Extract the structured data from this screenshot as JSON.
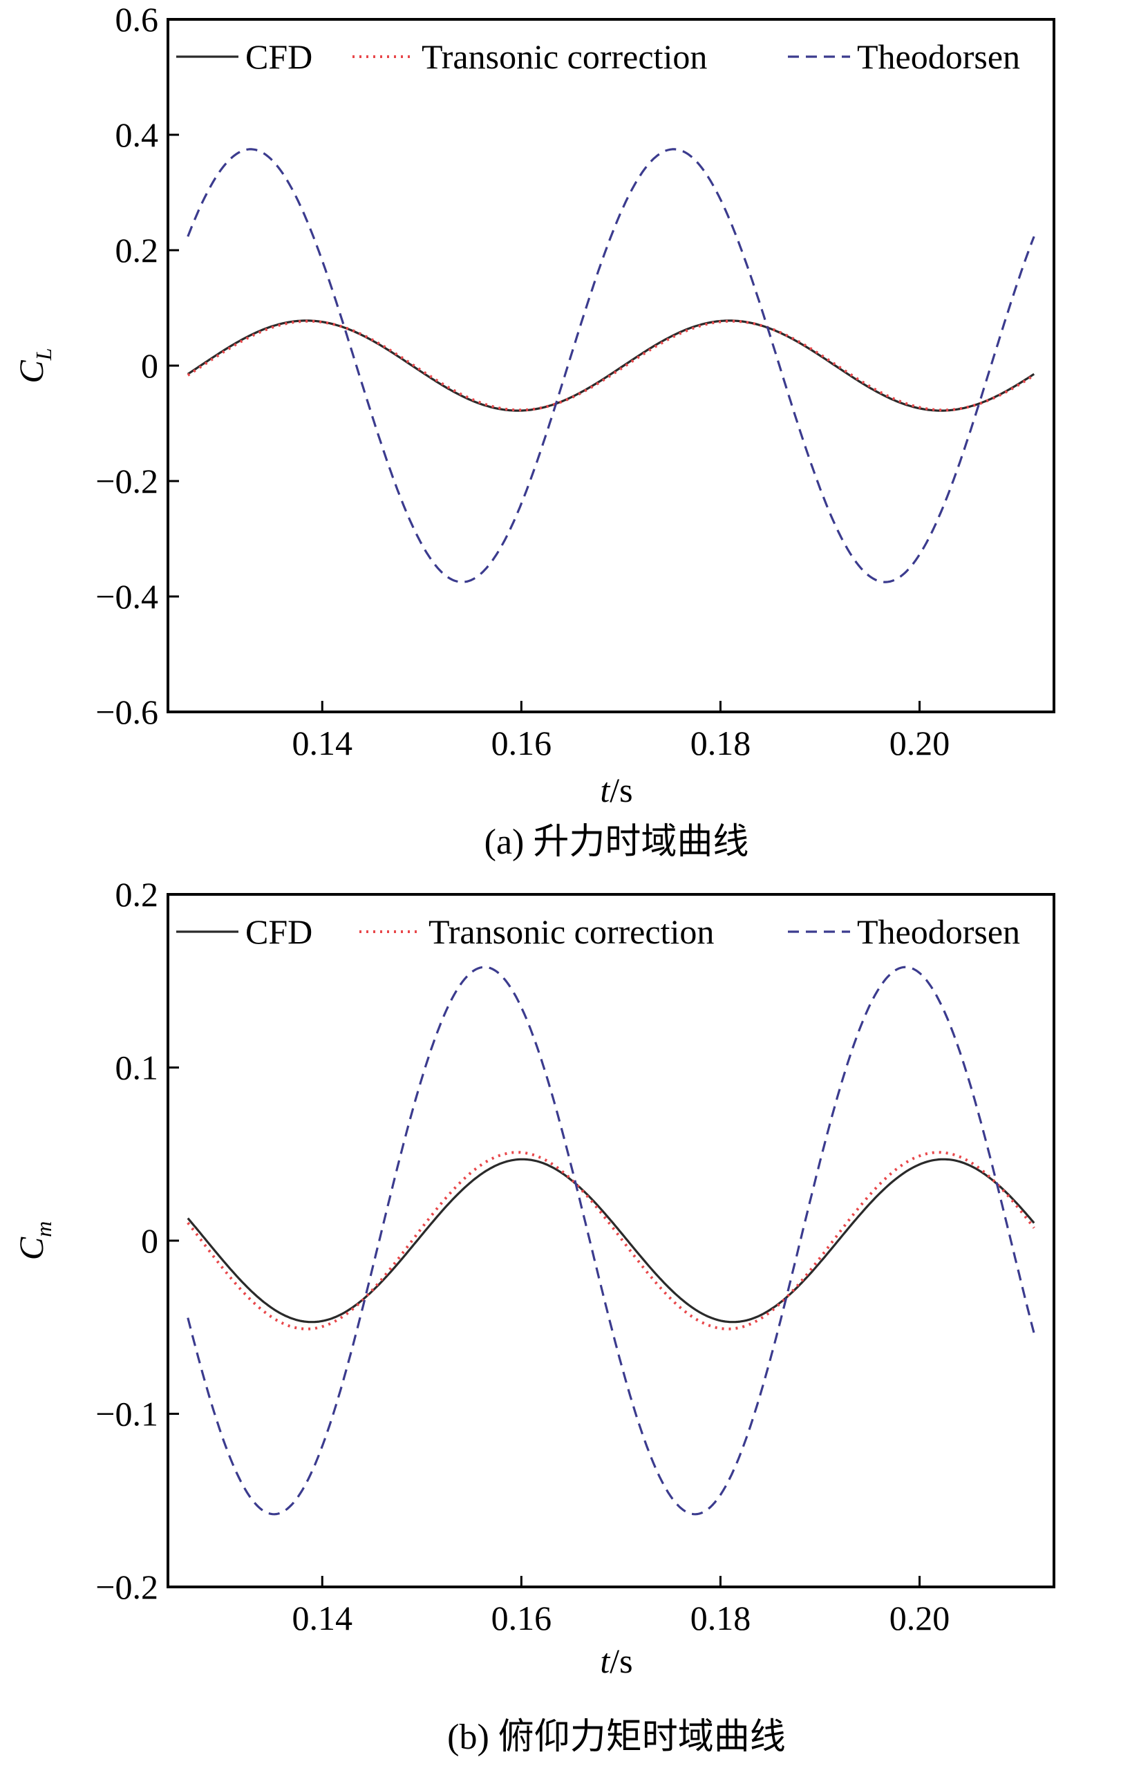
{
  "colors": {
    "cfd": "#2a2a2a",
    "transonic": "#e8474a",
    "theodorsen": "#3b3b8e",
    "axis": "#000000"
  },
  "chart_data": [
    {
      "type": "line",
      "ylabel_main": "C",
      "ylabel_sub": "L",
      "xlabel_italic": "t",
      "xlabel_rest": "/s",
      "caption": "(a) 升力时域曲线",
      "xlim": [
        0.1245,
        0.2135
      ],
      "ylim": [
        -0.6,
        0.6
      ],
      "xticks": [
        0.14,
        0.16,
        0.18,
        0.2
      ],
      "xtick_labels": [
        "0.14",
        "0.16",
        "0.18",
        "0.20"
      ],
      "yticks": [
        0.6,
        0.4,
        0.2,
        0,
        -0.2,
        -0.4,
        -0.6
      ],
      "ytick_labels": [
        "0.6",
        "0.4",
        "0.2",
        "0",
        "−0.2",
        "−0.4",
        "−0.6"
      ],
      "legend": [
        "CFD",
        "Transonic correction",
        "Theodorsen"
      ],
      "legend_position": "top",
      "series": [
        {
          "name": "CFD",
          "style": "solid",
          "x_start": 0.1265,
          "x_end": 0.2115,
          "amplitude": 0.078,
          "period": 0.0425,
          "phase_ref": 0.1384
        },
        {
          "name": "Transonic correction",
          "style": "dotted",
          "x_start": 0.1265,
          "x_end": 0.2115,
          "amplitude": 0.077,
          "period": 0.0425,
          "phase_ref": 0.1386
        },
        {
          "name": "Theodorsen",
          "style": "dashed",
          "x_start": 0.1265,
          "x_end": 0.2115,
          "amplitude": 0.375,
          "period": 0.0425,
          "phase_ref": 0.1328
        }
      ]
    },
    {
      "type": "line",
      "ylabel_main": "C",
      "ylabel_sub": "m",
      "xlabel_italic": "t",
      "xlabel_rest": "/s",
      "caption": "(b) 俯仰力矩时域曲线",
      "xlim": [
        0.1245,
        0.2135
      ],
      "ylim": [
        -0.2,
        0.2
      ],
      "xticks": [
        0.14,
        0.16,
        0.18,
        0.2
      ],
      "xtick_labels": [
        "0.14",
        "0.16",
        "0.18",
        "0.20"
      ],
      "yticks": [
        0.2,
        0.1,
        0,
        -0.1,
        -0.2
      ],
      "ytick_labels": [
        "0.2",
        "0.1",
        "0",
        "−0.1",
        "−0.2"
      ],
      "legend": [
        "CFD",
        "Transonic correction",
        "Theodorsen"
      ],
      "legend_position": "top",
      "series": [
        {
          "name": "CFD",
          "style": "solid",
          "x_start": 0.1265,
          "x_end": 0.2115,
          "amplitude": 0.047,
          "period": 0.0423,
          "phase_ref": 0.1601
        },
        {
          "name": "Transonic correction",
          "style": "dotted",
          "x_start": 0.1265,
          "x_end": 0.2115,
          "amplitude": 0.051,
          "period": 0.0423,
          "phase_ref": 0.1596
        },
        {
          "name": "Theodorsen",
          "style": "dashed",
          "x_start": 0.1265,
          "x_end": 0.2115,
          "amplitude": 0.158,
          "period": 0.0423,
          "phase_ref": 0.1563
        }
      ]
    }
  ]
}
